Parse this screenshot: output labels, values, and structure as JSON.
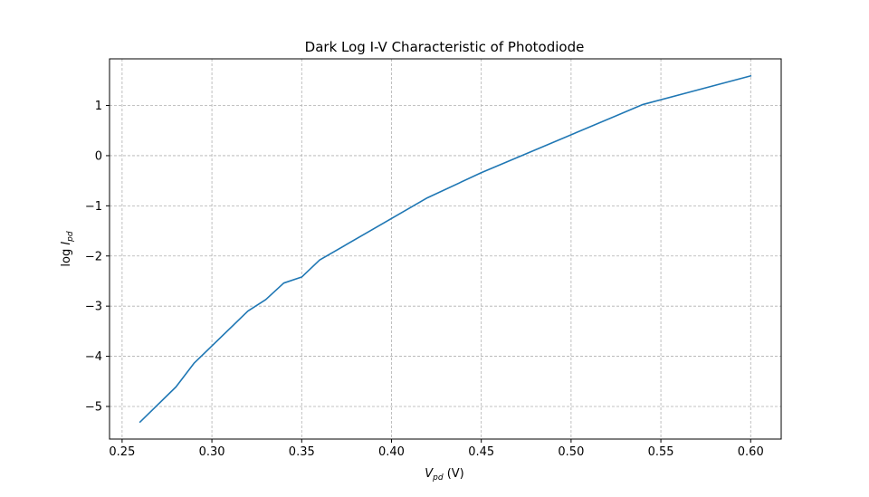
{
  "chart_data": {
    "type": "line",
    "title": "Dark Log I-V Characteristic of Photodiode",
    "xlabel": {
      "main": "V",
      "sub": "pd",
      "unit": " (V)"
    },
    "ylabel": {
      "prefix": "log ",
      "main": "I",
      "sub": "pd"
    },
    "xlim": [
      0.243,
      0.617
    ],
    "ylim": [
      -5.65,
      1.93
    ],
    "x_ticks": [
      0.25,
      0.3,
      0.35,
      0.4,
      0.45,
      0.5,
      0.55,
      0.6
    ],
    "x_tick_labels": [
      "0.25",
      "0.30",
      "0.35",
      "0.40",
      "0.45",
      "0.50",
      "0.55",
      "0.60"
    ],
    "y_ticks": [
      -5,
      -4,
      -3,
      -2,
      -1,
      0,
      1
    ],
    "y_tick_labels": [
      "−5",
      "−4",
      "−3",
      "−2",
      "−1",
      "0",
      "1"
    ],
    "grid": true,
    "series": [
      {
        "color": "#1f77b4",
        "x": [
          0.26,
          0.28,
          0.29,
          0.32,
          0.33,
          0.34,
          0.35,
          0.36,
          0.42,
          0.45,
          0.54,
          0.6
        ],
        "y": [
          -5.31,
          -4.61,
          -4.14,
          -3.1,
          -2.87,
          -2.54,
          -2.42,
          -2.08,
          -0.84,
          -0.34,
          1.02,
          1.59
        ]
      }
    ]
  }
}
